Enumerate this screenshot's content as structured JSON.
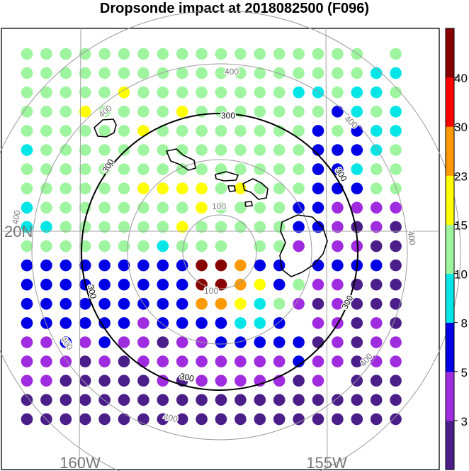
{
  "title": "Dropsonde impact at 2018082500 (F096)",
  "colors": {
    "gray_ring": "#9a9a9a",
    "black_ring": "#000000",
    "grid": "#a0a0a0",
    "coast": "#000000"
  },
  "map_labels": {
    "lat": "20N",
    "lon_left": "160W",
    "lon_right": "155W"
  },
  "ring_labels": {
    "r100": "100",
    "r300": "300",
    "r400": "400"
  },
  "colorbar": {
    "tick_labels": [
      "3",
      "5",
      "8",
      "10",
      "15",
      "23",
      "30",
      "40"
    ],
    "colors": [
      "#4b1e8a",
      "#a02ce0",
      "#0000e6",
      "#00e5e5",
      "#9ff59f",
      "#ffff00",
      "#ff9900",
      "#ff0000",
      "#880000"
    ]
  },
  "chart_data": {
    "type": "map-scatter",
    "title": "Dropsonde impact at 2018082500 (F096)",
    "legend": "colorbar right",
    "levels": [
      3,
      5,
      8,
      10,
      15,
      23,
      30,
      40
    ],
    "grid_cols": 20,
    "grid_rows": 20,
    "category_codes": {
      "0": "< 3",
      "1": "3-5",
      "2": "5-8",
      "3": "8-10",
      "4": "10-15",
      "5": "15-23",
      "6": "23-30",
      "7": "30-40",
      "8": "> 40"
    },
    "rows": [
      "444444444444444444-4",
      "44444444444444444433",
      "44444544444444334334",
      "44454444544444442343",
      "44444454444444424233",
      "34444444444444422234",
      "44444444444444422344",
      "44444455554544422244",
      "34444444454444221111",
      "33444444544444221010",
      "44444443444-441-1100",
      "22222222288622-22220",
      "22222222288652411000",
      "22222222266534101000",
      "22222212222332-11010",
      "11212110112222201011",
      "11101011111111211011",
      "1100000101111101-000",
      "00000000000000000000",
      "00000000000000000000"
    ]
  }
}
